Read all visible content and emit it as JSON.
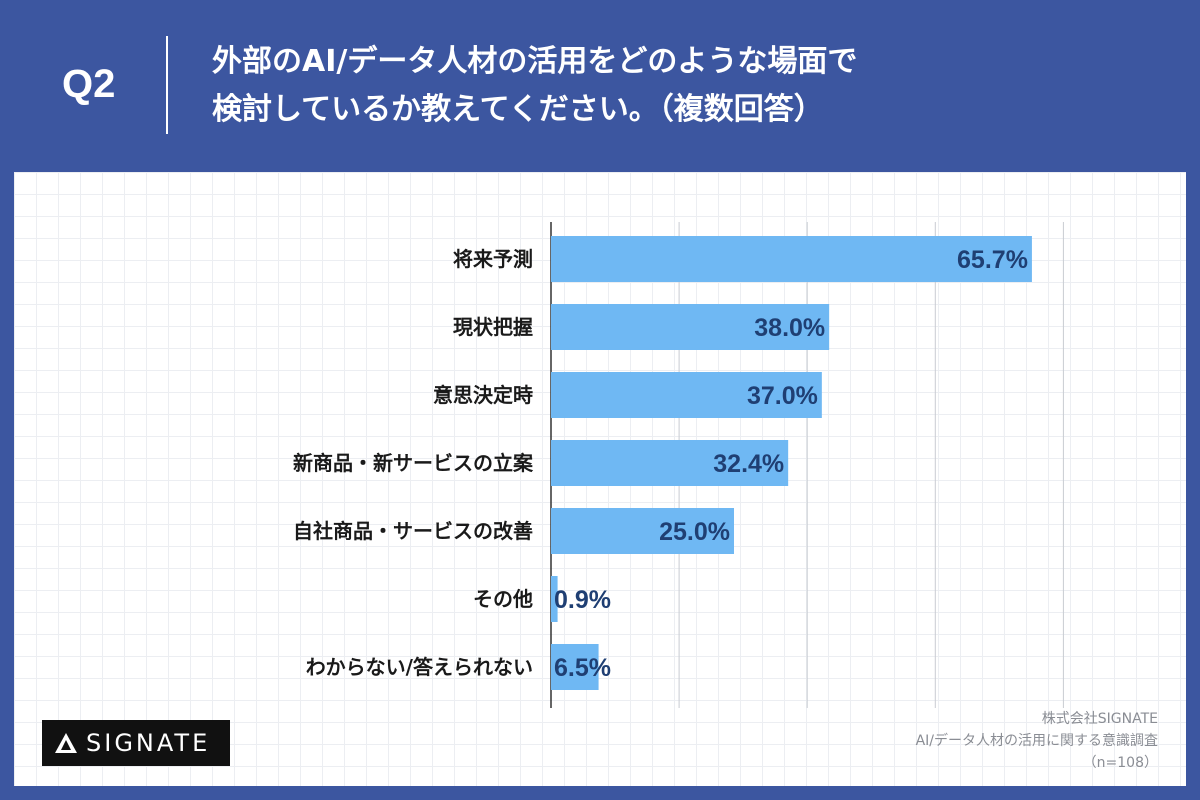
{
  "header": {
    "question_number": "Q2",
    "title_line1": "外部のAI/データ人材の活用をどのような場面で",
    "title_line2": "検討しているか教えてください。（複数回答）"
  },
  "logo": {
    "text": "SIGNATE"
  },
  "source": {
    "company": "株式会社SIGNATE",
    "survey": "AI/データ人材の活用に関する意識調査",
    "sample": "（n=108）"
  },
  "colors": {
    "background": "#3c56a0",
    "bar": "#6fb8f3",
    "value_label": "#1f3f73"
  },
  "chart_data": {
    "type": "bar",
    "orientation": "horizontal",
    "categories": [
      "将来予測",
      "現状把握",
      "意思決定時",
      "新商品・新サービスの立案",
      "自社商品・サービスの改善",
      "その他",
      "わからない/答えられない"
    ],
    "values": [
      65.7,
      38.0,
      37.0,
      32.4,
      25.0,
      0.9,
      6.5
    ],
    "value_labels": [
      "65.7%",
      "38.0%",
      "37.0%",
      "32.4%",
      "25.0%",
      "0.9%",
      "6.5%"
    ],
    "xlim": [
      0,
      70
    ],
    "grid": true
  }
}
